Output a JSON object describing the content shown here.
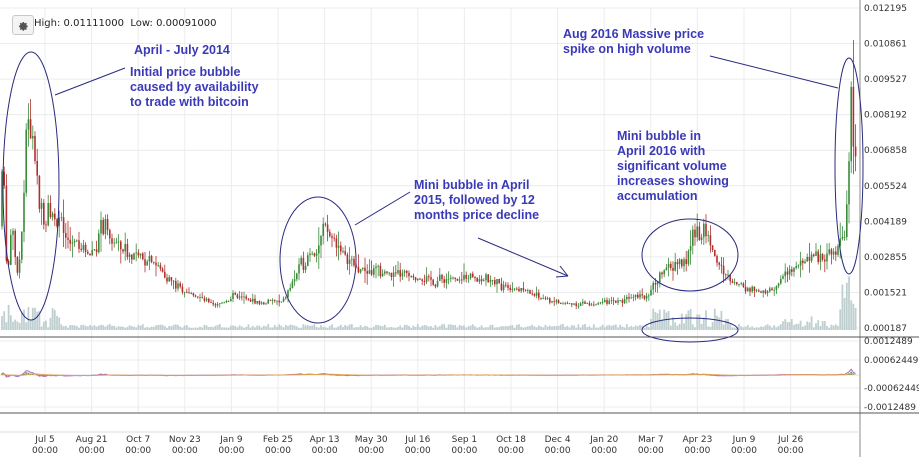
{
  "header": {
    "high_label": "High:",
    "high_value": "0.01111000",
    "low_label": "Low:",
    "low_value": "0.00091000",
    "settings_icon": "gear-icon"
  },
  "annotations": [
    {
      "id": "a1",
      "lines": [
        "April  - July 2014"
      ]
    },
    {
      "id": "a2",
      "lines": [
        "Initial price bubble",
        "caused by availability",
        "to trade with bitcoin"
      ]
    },
    {
      "id": "a3",
      "lines": [
        "Aug 2016 Massive price",
        "spike on high volume"
      ]
    },
    {
      "id": "a4",
      "lines": [
        "Mini bubble in April",
        "2015, followed by 12",
        "months price decline"
      ]
    },
    {
      "id": "a5",
      "lines": [
        "Mini bubble in",
        "April 2016 with",
        "significant volume",
        "increases showing",
        "accumulation"
      ]
    }
  ],
  "colors": {
    "up": "#3a8a3a",
    "down": "#b03030",
    "annot": "#3a3ab8",
    "volume": "#bfcfcf",
    "macd": "#b070c0",
    "signal": "#e0a050"
  },
  "chart_data": {
    "type": "candlestick",
    "price_axis": {
      "min": 0.000187,
      "max": 0.012195,
      "ticks": [
        "0.012195",
        "0.010861",
        "0.009527",
        "0.008192",
        "0.006858",
        "0.005524",
        "0.004189",
        "0.002855",
        "0.001521",
        "0.000187"
      ]
    },
    "indicator_axis": {
      "ticks": [
        "0.0012489",
        "0.00062449",
        "-0.00062449",
        "-0.0012489"
      ]
    },
    "x_ticks": [
      {
        "date": "Jul 5",
        "time": "00:00"
      },
      {
        "date": "Aug 21",
        "time": "00:00"
      },
      {
        "date": "Oct 7",
        "time": "00:00"
      },
      {
        "date": "Nov 23",
        "time": "00:00"
      },
      {
        "date": "Jan 9",
        "time": "00:00"
      },
      {
        "date": "Feb 25",
        "time": "00:00"
      },
      {
        "date": "Apr 13",
        "time": "00:00"
      },
      {
        "date": "May 30",
        "time": "00:00"
      },
      {
        "date": "Jul 16",
        "time": "00:00"
      },
      {
        "date": "Sep 1",
        "time": "00:00"
      },
      {
        "date": "Oct 18",
        "time": "00:00"
      },
      {
        "date": "Dec 4",
        "time": "00:00"
      },
      {
        "date": "Jan 20",
        "time": "00:00"
      },
      {
        "date": "Mar 7",
        "time": "00:00"
      },
      {
        "date": "Apr 23",
        "time": "00:00"
      },
      {
        "date": "Jun 9",
        "time": "00:00"
      },
      {
        "date": "Jul 26",
        "time": "00:00"
      }
    ],
    "price_series": [
      [
        0,
        0.004
      ],
      [
        3,
        0.007
      ],
      [
        6,
        0.003
      ],
      [
        9,
        0.0025
      ],
      [
        12,
        0.0045
      ],
      [
        15,
        0.003
      ],
      [
        18,
        0.002
      ],
      [
        21,
        0.0035
      ],
      [
        24,
        0.0055
      ],
      [
        27,
        0.0085
      ],
      [
        30,
        0.007
      ],
      [
        33,
        0.0075
      ],
      [
        36,
        0.006
      ],
      [
        39,
        0.005
      ],
      [
        42,
        0.0045
      ],
      [
        45,
        0.004
      ],
      [
        48,
        0.005
      ],
      [
        52,
        0.0045
      ],
      [
        56,
        0.004
      ],
      [
        60,
        0.0045
      ],
      [
        65,
        0.0035
      ],
      [
        70,
        0.0033
      ],
      [
        75,
        0.0035
      ],
      [
        80,
        0.0033
      ],
      [
        85,
        0.0031
      ],
      [
        90,
        0.003
      ],
      [
        95,
        0.0032
      ],
      [
        100,
        0.0038
      ],
      [
        105,
        0.004
      ],
      [
        110,
        0.0035
      ],
      [
        115,
        0.0034
      ],
      [
        120,
        0.0032
      ],
      [
        125,
        0.0031
      ],
      [
        130,
        0.0029
      ],
      [
        135,
        0.003
      ],
      [
        140,
        0.0028
      ],
      [
        145,
        0.0027
      ],
      [
        150,
        0.0029
      ],
      [
        155,
        0.0026
      ],
      [
        160,
        0.0024
      ],
      [
        165,
        0.0022
      ],
      [
        170,
        0.002
      ],
      [
        175,
        0.0018
      ],
      [
        180,
        0.0017
      ],
      [
        185,
        0.0016
      ],
      [
        190,
        0.0015
      ],
      [
        195,
        0.0014
      ],
      [
        200,
        0.0013
      ],
      [
        205,
        0.0012
      ],
      [
        210,
        0.0011
      ],
      [
        215,
        0.001
      ],
      [
        220,
        0.0011
      ],
      [
        225,
        0.0012
      ],
      [
        230,
        0.0013
      ],
      [
        235,
        0.0014
      ],
      [
        240,
        0.0013
      ],
      [
        245,
        0.0013
      ],
      [
        250,
        0.0012
      ],
      [
        255,
        0.0012
      ],
      [
        260,
        0.0011
      ],
      [
        265,
        0.0011
      ],
      [
        270,
        0.0012
      ],
      [
        275,
        0.0012
      ],
      [
        280,
        0.0011
      ],
      [
        285,
        0.0013
      ],
      [
        290,
        0.0017
      ],
      [
        295,
        0.0021
      ],
      [
        300,
        0.0025
      ],
      [
        305,
        0.0027
      ],
      [
        310,
        0.0031
      ],
      [
        315,
        0.003
      ],
      [
        320,
        0.0034
      ],
      [
        325,
        0.004
      ],
      [
        330,
        0.0036
      ],
      [
        335,
        0.0035
      ],
      [
        340,
        0.0032
      ],
      [
        345,
        0.0028
      ],
      [
        350,
        0.0027
      ],
      [
        355,
        0.0025
      ],
      [
        360,
        0.0024
      ],
      [
        365,
        0.0024
      ],
      [
        370,
        0.0023
      ],
      [
        375,
        0.0024
      ],
      [
        380,
        0.0022
      ],
      [
        385,
        0.0023
      ],
      [
        390,
        0.0022
      ],
      [
        395,
        0.0021
      ],
      [
        400,
        0.0022
      ],
      [
        405,
        0.0022
      ],
      [
        410,
        0.0021
      ],
      [
        415,
        0.002
      ],
      [
        420,
        0.0021
      ],
      [
        425,
        0.002
      ],
      [
        430,
        0.002
      ],
      [
        435,
        0.0019
      ],
      [
        440,
        0.002
      ],
      [
        445,
        0.002
      ],
      [
        450,
        0.0021
      ],
      [
        455,
        0.002
      ],
      [
        460,
        0.0019
      ],
      [
        465,
        0.0021
      ],
      [
        470,
        0.0022
      ],
      [
        475,
        0.0021
      ],
      [
        480,
        0.002
      ],
      [
        485,
        0.002
      ],
      [
        490,
        0.0019
      ],
      [
        495,
        0.0019
      ],
      [
        500,
        0.0018
      ],
      [
        505,
        0.0019
      ],
      [
        510,
        0.0017
      ],
      [
        515,
        0.0017
      ],
      [
        520,
        0.0016
      ],
      [
        525,
        0.0016
      ],
      [
        530,
        0.0015
      ],
      [
        535,
        0.0014
      ],
      [
        540,
        0.0013
      ],
      [
        545,
        0.0013
      ],
      [
        550,
        0.0012
      ],
      [
        555,
        0.0012
      ],
      [
        560,
        0.0011
      ],
      [
        565,
        0.0011
      ],
      [
        570,
        0.0011
      ],
      [
        575,
        0.0011
      ],
      [
        580,
        0.0011
      ],
      [
        585,
        0.0011
      ],
      [
        590,
        0.0011
      ],
      [
        595,
        0.0011
      ],
      [
        600,
        0.0011
      ],
      [
        605,
        0.0012
      ],
      [
        610,
        0.0011
      ],
      [
        615,
        0.0012
      ],
      [
        620,
        0.0012
      ],
      [
        625,
        0.0013
      ],
      [
        630,
        0.0014
      ],
      [
        635,
        0.0015
      ],
      [
        640,
        0.0015
      ],
      [
        645,
        0.0013
      ],
      [
        650,
        0.0016
      ],
      [
        655,
        0.0018
      ],
      [
        660,
        0.0022
      ],
      [
        665,
        0.0025
      ],
      [
        670,
        0.0023
      ],
      [
        675,
        0.0026
      ],
      [
        680,
        0.0027
      ],
      [
        685,
        0.0025
      ],
      [
        690,
        0.0033
      ],
      [
        695,
        0.004
      ],
      [
        700,
        0.0036
      ],
      [
        705,
        0.0038
      ],
      [
        710,
        0.0035
      ],
      [
        715,
        0.0028
      ],
      [
        720,
        0.0025
      ],
      [
        725,
        0.0022
      ],
      [
        730,
        0.002
      ],
      [
        735,
        0.0019
      ],
      [
        740,
        0.0018
      ],
      [
        745,
        0.0017
      ],
      [
        750,
        0.0016
      ],
      [
        755,
        0.0016
      ],
      [
        760,
        0.0015
      ],
      [
        765,
        0.0015
      ],
      [
        770,
        0.0016
      ],
      [
        775,
        0.0017
      ],
      [
        780,
        0.0019
      ],
      [
        785,
        0.0022
      ],
      [
        790,
        0.0023
      ],
      [
        795,
        0.0024
      ],
      [
        800,
        0.0025
      ],
      [
        805,
        0.0027
      ],
      [
        810,
        0.0029
      ],
      [
        815,
        0.0028
      ],
      [
        820,
        0.0027
      ],
      [
        825,
        0.0028
      ],
      [
        830,
        0.0029
      ],
      [
        835,
        0.0031
      ],
      [
        840,
        0.0034
      ],
      [
        845,
        0.0038
      ],
      [
        848,
        0.0055
      ],
      [
        851,
        0.009
      ],
      [
        854,
        0.007
      ],
      [
        857,
        0.0072
      ]
    ]
  }
}
